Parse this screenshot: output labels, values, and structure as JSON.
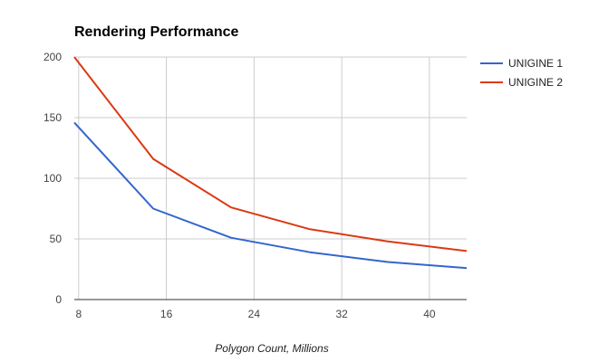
{
  "chart_data": {
    "type": "line",
    "title": "Rendering Performance",
    "xlabel": "Polygon Count,  Millions",
    "ylabel": "",
    "xlim": [
      7.6,
      43.4
    ],
    "ylim": [
      0,
      200
    ],
    "xticks": [
      8,
      16,
      24,
      32,
      40
    ],
    "yticks": [
      0,
      50,
      100,
      150,
      200
    ],
    "grid": true,
    "legend": "right",
    "series": [
      {
        "name": "UNIGINE 1",
        "color": "#3366cc",
        "x": [
          7.6,
          14.8,
          21.9,
          29.1,
          36.2,
          43.4
        ],
        "y": [
          146,
          75,
          51,
          39,
          31,
          26
        ]
      },
      {
        "name": "UNIGINE 2",
        "color": "#dc3912",
        "x": [
          7.6,
          14.8,
          21.9,
          29.1,
          36.2,
          43.4
        ],
        "y": [
          200,
          116,
          76,
          58,
          48,
          40
        ]
      }
    ]
  }
}
